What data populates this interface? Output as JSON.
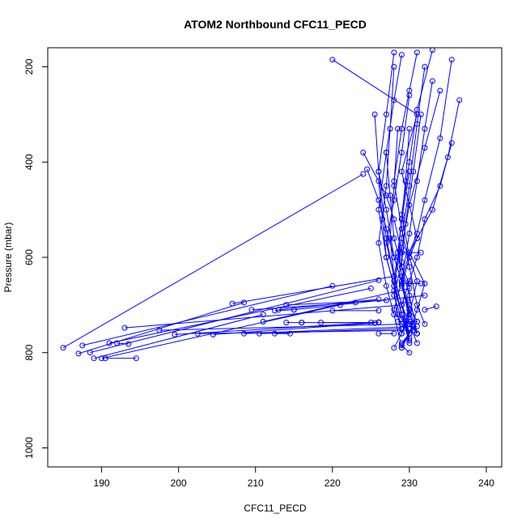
{
  "chart_data": {
    "type": "line",
    "title": "ATOM2 Northbound CFC11_PECD",
    "xlabel": "CFC11_PECD",
    "ylabel": "Pressure (mbar)",
    "xlim": [
      183,
      242
    ],
    "ylim": [
      1040,
      160
    ],
    "y_reversed": true,
    "grid": false,
    "legend": "none",
    "series_color": "#0000ff",
    "x_ticks": [
      190,
      200,
      210,
      220,
      230,
      240
    ],
    "y_ticks": [
      200,
      400,
      600,
      800,
      1000
    ],
    "series": [
      {
        "x": [
          220,
          231,
          229,
          231,
          230,
          232,
          231,
          230,
          229,
          230
        ],
        "y": [
          185,
          300,
          420,
          560,
          590,
          655,
          710,
          760,
          785,
          800
        ]
      },
      {
        "x": [
          224,
          227,
          228,
          229,
          229,
          230,
          230,
          231,
          230,
          229
        ],
        "y": [
          380,
          470,
          520,
          590,
          620,
          655,
          700,
          735,
          760,
          780
        ]
      },
      {
        "x": [
          233,
          231,
          230,
          229,
          230,
          231,
          230,
          229,
          228
        ],
        "y": [
          165,
          290,
          400,
          510,
          600,
          650,
          720,
          760,
          790
        ]
      },
      {
        "x": [
          228,
          227,
          226,
          227,
          228,
          229,
          230,
          231
        ],
        "y": [
          170,
          300,
          420,
          560,
          640,
          700,
          740,
          760
        ]
      },
      {
        "x": [
          235.5,
          234,
          232,
          231,
          230,
          229,
          228,
          229,
          230
        ],
        "y": [
          185,
          350,
          480,
          550,
          590,
          650,
          710,
          740,
          760
        ]
      },
      {
        "x": [
          236.5,
          235,
          233,
          231,
          230,
          229,
          230,
          231
        ],
        "y": [
          270,
          390,
          500,
          560,
          600,
          660,
          720,
          760
        ]
      },
      {
        "x": [
          235.5,
          234,
          232,
          231,
          230,
          229
        ],
        "y": [
          360,
          450,
          520,
          600,
          650,
          700
        ]
      },
      {
        "x": [
          229,
          228,
          227,
          226,
          227,
          228,
          229,
          230,
          229
        ],
        "y": [
          175,
          270,
          380,
          500,
          600,
          660,
          720,
          760,
          790
        ]
      },
      {
        "x": [
          231,
          230,
          229,
          228,
          229,
          230,
          231,
          232
        ],
        "y": [
          170,
          250,
          330,
          440,
          540,
          620,
          700,
          740
        ]
      },
      {
        "x": [
          225.5,
          226,
          227,
          228,
          229,
          230,
          231
        ],
        "y": [
          300,
          420,
          500,
          600,
          650,
          710,
          760
        ]
      },
      {
        "x": [
          232,
          231,
          230,
          229,
          228,
          229,
          230
        ],
        "y": [
          200,
          320,
          450,
          560,
          640,
          700,
          770
        ]
      },
      {
        "x": [
          230,
          229,
          228,
          227,
          228,
          229,
          230,
          231
        ],
        "y": [
          260,
          380,
          480,
          570,
          640,
          700,
          740,
          780
        ]
      },
      {
        "x": [
          228,
          227.5,
          227,
          226,
          227,
          228,
          229
        ],
        "y": [
          200,
          330,
          450,
          570,
          660,
          720,
          790
        ]
      },
      {
        "x": [
          233,
          232,
          231,
          230,
          229,
          230
        ],
        "y": [
          230,
          330,
          440,
          550,
          650,
          720
        ]
      },
      {
        "x": [
          224.5,
          226,
          227,
          228,
          229,
          230,
          229
        ],
        "y": [
          415,
          480,
          540,
          600,
          650,
          710,
          760
        ]
      },
      {
        "x": [
          231.5,
          230.5,
          229.5,
          229,
          228,
          229,
          230
        ],
        "y": [
          300,
          420,
          530,
          610,
          680,
          730,
          760
        ]
      },
      {
        "x": [
          230,
          229.5,
          229,
          228.5,
          229,
          229.5,
          230,
          231
        ],
        "y": [
          330,
          440,
          520,
          590,
          640,
          690,
          735,
          760
        ]
      },
      {
        "x": [
          226,
          226.5,
          227,
          228,
          229,
          230
        ],
        "y": [
          440,
          520,
          600,
          660,
          720,
          780
        ]
      },
      {
        "x": [
          234,
          232,
          230,
          229,
          228,
          229,
          230
        ],
        "y": [
          250,
          370,
          490,
          580,
          650,
          720,
          775
        ]
      },
      {
        "x": [
          228.5,
          228,
          227.5,
          228,
          229,
          230
        ],
        "y": [
          330,
          450,
          560,
          640,
          700,
          760
        ]
      },
      {
        "x": [
          230,
          229,
          228.5,
          228,
          228.5,
          229
        ],
        "y": [
          420,
          520,
          600,
          670,
          720,
          760
        ]
      },
      {
        "x": [
          227,
          227.5,
          228,
          229,
          230,
          231
        ],
        "y": [
          380,
          470,
          560,
          620,
          680,
          760
        ]
      },
      {
        "x": [
          193,
          229
        ],
        "y": [
          748,
          700
        ]
      },
      {
        "x": [
          190,
          221
        ],
        "y": [
          812,
          700
        ]
      },
      {
        "x": [
          189,
          211
        ],
        "y": [
          812,
          720
        ]
      },
      {
        "x": [
          191,
          225
        ],
        "y": [
          780,
          665
        ]
      },
      {
        "x": [
          188.5,
          226
        ],
        "y": [
          800,
          648
        ]
      },
      {
        "x": [
          187.5,
          220
        ],
        "y": [
          785,
          660
        ]
      },
      {
        "x": [
          185,
          224
        ],
        "y": [
          790,
          425
        ]
      },
      {
        "x": [
          187,
          208.5
        ],
        "y": [
          802,
          695
        ]
      },
      {
        "x": [
          207,
          228
        ],
        "y": [
          697,
          640
        ]
      },
      {
        "x": [
          209.5,
          223
        ],
        "y": [
          710,
          695
        ]
      },
      {
        "x": [
          211,
          230
        ],
        "y": [
          735,
          665
        ]
      },
      {
        "x": [
          213,
          226
        ],
        "y": [
          710,
          688
        ]
      },
      {
        "x": [
          214,
          227
        ],
        "y": [
          700,
          690
        ]
      },
      {
        "x": [
          215,
          232
        ],
        "y": [
          710,
          680
        ]
      },
      {
        "x": [
          197.5,
          230
        ],
        "y": [
          753,
          740
        ]
      },
      {
        "x": [
          199.5,
          226
        ],
        "y": [
          762,
          736
        ]
      },
      {
        "x": [
          202.5,
          230.5
        ],
        "y": [
          760,
          753
        ]
      },
      {
        "x": [
          208.5,
          231
        ],
        "y": [
          760,
          745
        ]
      },
      {
        "x": [
          210.5,
          229
        ],
        "y": [
          760,
          750
        ]
      },
      {
        "x": [
          204.5,
          225.5
        ],
        "y": [
          762,
          738
        ]
      },
      {
        "x": [
          190.5,
          194.5
        ],
        "y": [
          812,
          812
        ]
      },
      {
        "x": [
          192,
          193.5
        ],
        "y": [
          780,
          782
        ]
      },
      {
        "x": [
          216,
          225
        ],
        "y": [
          737,
          737
        ]
      },
      {
        "x": [
          218.5,
          226
        ],
        "y": [
          737,
          737
        ]
      },
      {
        "x": [
          212.5,
          215
        ],
        "y": [
          712,
          710
        ]
      },
      {
        "x": [
          214,
          216
        ],
        "y": [
          737,
          737
        ]
      },
      {
        "x": [
          220,
          226
        ],
        "y": [
          712,
          712
        ]
      },
      {
        "x": [
          232,
          233.5
        ],
        "y": [
          710,
          703
        ]
      },
      {
        "x": [
          226,
          228
        ],
        "y": [
          760,
          760
        ]
      },
      {
        "x": [
          212.5,
          214.5
        ],
        "y": [
          760,
          760
        ]
      },
      {
        "x": [
          229,
          231.5
        ],
        "y": [
          655,
          655
        ]
      },
      {
        "x": [
          229,
          231.5
        ],
        "y": [
          590,
          590
        ]
      },
      {
        "x": [
          228.5,
          231
        ],
        "y": [
          735,
          735
        ]
      }
    ]
  }
}
